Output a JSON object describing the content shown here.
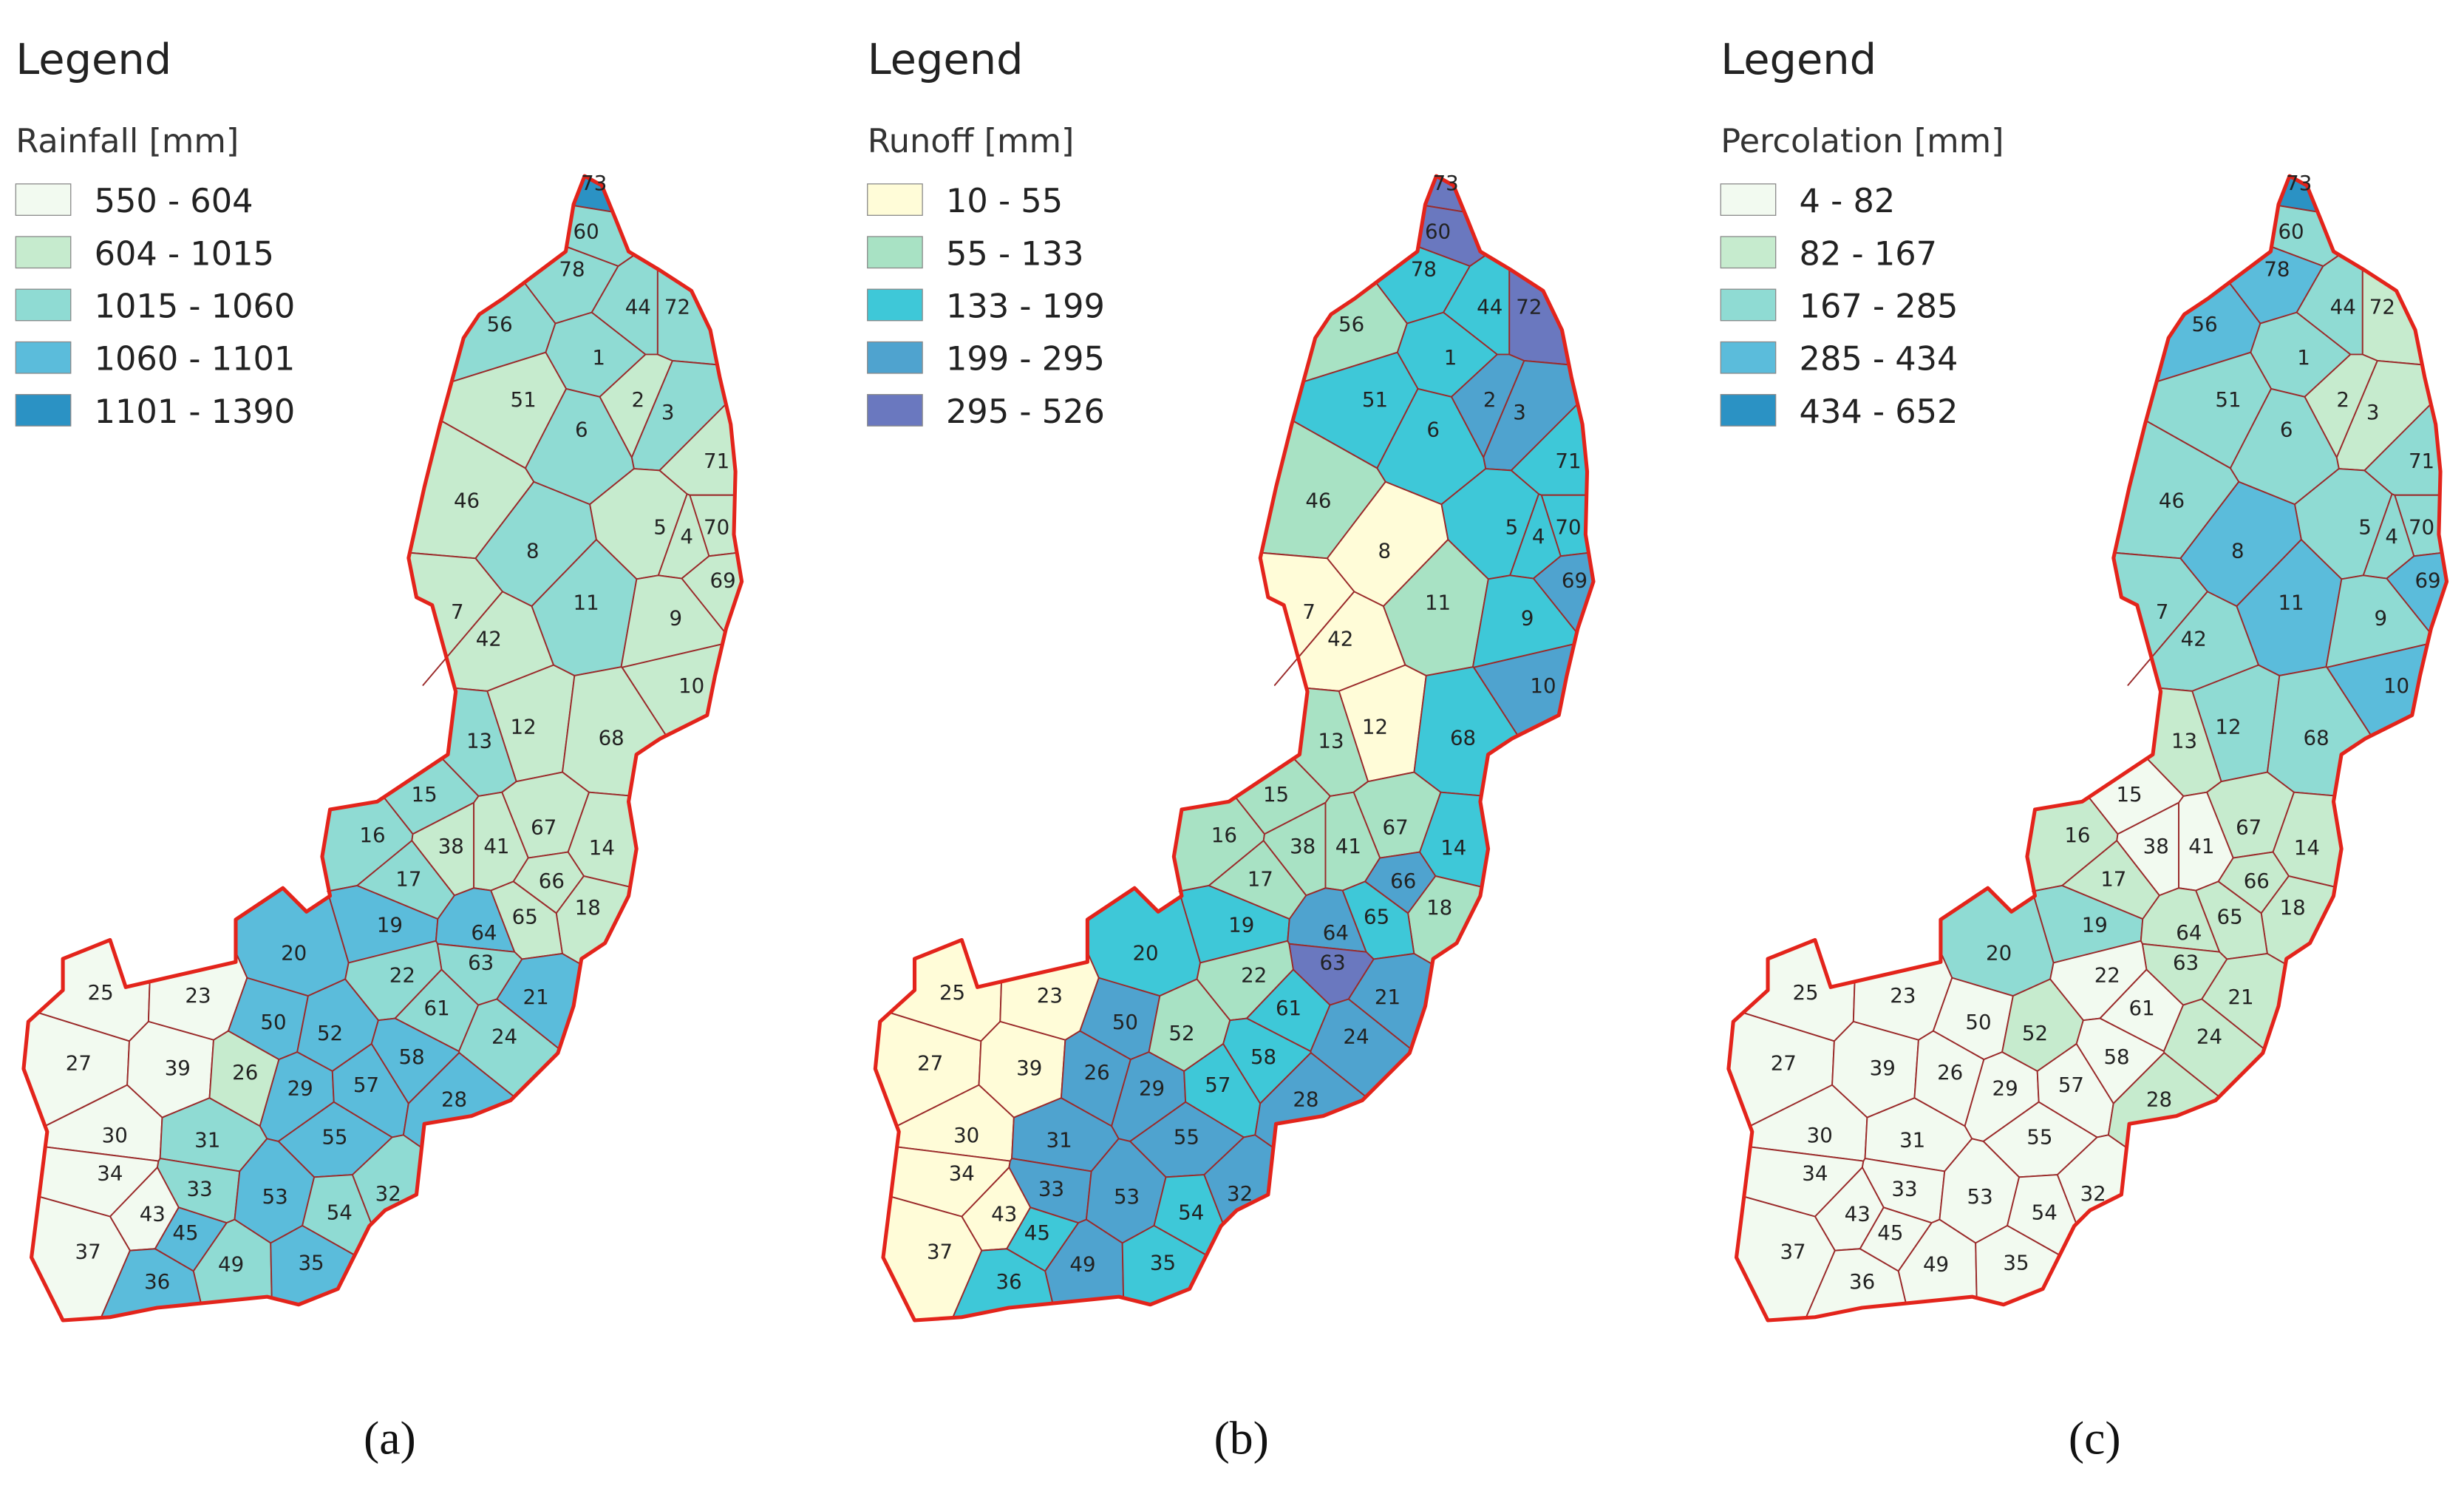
{
  "subbasins": [
    "73",
    "60",
    "78",
    "44",
    "72",
    "56",
    "1",
    "51",
    "2",
    "3",
    "6",
    "71",
    "46",
    "5",
    "70",
    "4",
    "8",
    "69",
    "7",
    "11",
    "42",
    "9",
    "10",
    "12",
    "68",
    "13",
    "15",
    "67",
    "16",
    "38",
    "41",
    "14",
    "66",
    "17",
    "18",
    "65",
    "19",
    "64",
    "63",
    "20",
    "22",
    "21",
    "61",
    "25",
    "23",
    "50",
    "52",
    "24",
    "58",
    "27",
    "39",
    "26",
    "29",
    "57",
    "28",
    "30",
    "31",
    "55",
    "34",
    "33",
    "53",
    "54",
    "32",
    "43",
    "45",
    "49",
    "37",
    "35",
    "36"
  ],
  "panels": [
    {
      "legend_heading": "Legend",
      "legend_title": "Rainfall [mm]",
      "classes": [
        {
          "label": "550 - 604",
          "color": "#f2faf0"
        },
        {
          "label": "604 - 1015",
          "color": "#c6ebce"
        },
        {
          "label": "1015 - 1060",
          "color": "#8fdbd3"
        },
        {
          "label": "1060 - 1101",
          "color": "#5bbcdb"
        },
        {
          "label": "1101 - 1390",
          "color": "#2b92c4"
        }
      ],
      "subbasin_classes": [
        4,
        2,
        2,
        2,
        2,
        2,
        2,
        1,
        1,
        2,
        2,
        1,
        1,
        1,
        1,
        1,
        2,
        1,
        1,
        2,
        1,
        1,
        1,
        1,
        1,
        2,
        2,
        1,
        2,
        1,
        1,
        1,
        1,
        2,
        1,
        1,
        3,
        3,
        2,
        3,
        2,
        3,
        2,
        0,
        0,
        3,
        3,
        2,
        3,
        0,
        0,
        1,
        3,
        3,
        3,
        0,
        2,
        3,
        0,
        2,
        3,
        2,
        2,
        0,
        3,
        2,
        0,
        3,
        3
      ],
      "caption": "(a)"
    },
    {
      "legend_heading": "Legend",
      "legend_title": "Runoff [mm]",
      "classes": [
        {
          "label": "10 - 55",
          "color": "#fffcd8"
        },
        {
          "label": "55 - 133",
          "color": "#a8e2c4"
        },
        {
          "label": "133 - 199",
          "color": "#3ec8d8"
        },
        {
          "label": "199 - 295",
          "color": "#4fa3cf"
        },
        {
          "label": "295 - 526",
          "color": "#6a78bf"
        }
      ],
      "subbasin_classes": [
        4,
        4,
        2,
        2,
        4,
        1,
        2,
        2,
        3,
        3,
        2,
        2,
        1,
        2,
        2,
        2,
        0,
        3,
        0,
        1,
        0,
        2,
        3,
        0,
        2,
        1,
        1,
        1,
        1,
        1,
        1,
        2,
        3,
        1,
        1,
        2,
        2,
        3,
        4,
        2,
        1,
        3,
        2,
        0,
        0,
        3,
        1,
        3,
        2,
        0,
        0,
        3,
        3,
        2,
        3,
        0,
        3,
        3,
        0,
        3,
        3,
        2,
        3,
        0,
        2,
        3,
        0,
        2,
        2
      ],
      "caption": "(b)"
    },
    {
      "legend_heading": "Legend",
      "legend_title": "Percolation [mm]",
      "classes": [
        {
          "label": "4 - 82",
          "color": "#f2faf0"
        },
        {
          "label": "82 - 167",
          "color": "#c6ebce"
        },
        {
          "label": "167 - 285",
          "color": "#8fdbd3"
        },
        {
          "label": "285 - 434",
          "color": "#5bbcdb"
        },
        {
          "label": "434 - 652",
          "color": "#2b92c4"
        }
      ],
      "subbasin_classes": [
        4,
        2,
        3,
        2,
        1,
        3,
        2,
        2,
        1,
        1,
        2,
        2,
        2,
        2,
        2,
        2,
        3,
        3,
        2,
        3,
        2,
        2,
        3,
        2,
        2,
        1,
        0,
        1,
        1,
        0,
        0,
        1,
        1,
        1,
        1,
        1,
        2,
        1,
        1,
        2,
        0,
        1,
        0,
        0,
        0,
        0,
        1,
        1,
        0,
        0,
        0,
        0,
        0,
        0,
        1,
        0,
        0,
        0,
        0,
        0,
        0,
        0,
        0,
        0,
        0,
        0,
        0,
        0,
        0
      ],
      "caption": "(c)"
    }
  ]
}
